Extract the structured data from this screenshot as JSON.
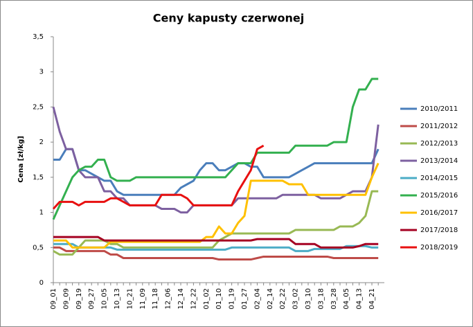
{
  "chart_data": {
    "type": "line",
    "title": "Ceny kapusty czerwonej",
    "y_label": "Cena [zł/kg]",
    "categories": [
      "09_01",
      null,
      "09_09",
      null,
      "09_19",
      null,
      "09_27",
      null,
      "10_05",
      null,
      "10_13",
      null,
      "10_21",
      null,
      "11_09",
      null,
      "11_18",
      null,
      "12_06",
      null,
      "12_14",
      null,
      "12_22",
      null,
      "01_02",
      null,
      "01_10",
      null,
      "01_19",
      null,
      "01_27",
      null,
      "02_04",
      null,
      "02_14",
      null,
      "02_22",
      null,
      "03_02",
      null,
      "03_10",
      null,
      "03_18",
      null,
      "03_28",
      null,
      "04_05",
      null,
      "04_13",
      null,
      "04_21",
      null
    ],
    "ylim": [
      0,
      3.5
    ],
    "yticks": [
      0,
      {
        "value": 0.5,
        "label": "0,5"
      },
      1,
      {
        "value": 1.5,
        "label": "1,5"
      },
      2,
      {
        "value": 2.5,
        "label": "2,5"
      },
      3,
      {
        "value": 3.5,
        "label": "3,5"
      }
    ],
    "grid": false,
    "legend": "right",
    "series": [
      {
        "name": "2010/2011",
        "color": "#4a7ebb",
        "values": [
          1.75,
          1.75,
          1.9,
          1.9,
          1.6,
          1.6,
          1.55,
          1.5,
          1.45,
          1.45,
          1.3,
          1.25,
          1.25,
          1.25,
          1.25,
          1.25,
          1.25,
          1.25,
          1.25,
          1.25,
          1.35,
          1.4,
          1.45,
          1.6,
          1.7,
          1.7,
          1.6,
          1.6,
          1.65,
          1.7,
          1.7,
          1.65,
          1.65,
          1.5,
          1.5,
          1.5,
          1.5,
          1.5,
          1.55,
          1.6,
          1.65,
          1.7,
          1.7,
          1.7,
          1.7,
          1.7,
          1.7,
          1.7,
          1.7,
          1.7,
          1.7,
          1.9
        ]
      },
      {
        "name": "2011/2012",
        "color": "#be4b48",
        "values": [
          0.5,
          0.5,
          0.45,
          0.45,
          0.45,
          0.45,
          0.45,
          0.45,
          0.45,
          0.4,
          0.4,
          0.35,
          0.35,
          0.35,
          0.35,
          0.35,
          0.35,
          0.35,
          0.35,
          0.35,
          0.35,
          0.35,
          0.35,
          0.35,
          0.35,
          0.35,
          0.33,
          0.33,
          0.33,
          0.33,
          0.33,
          0.33,
          0.35,
          0.37,
          0.37,
          0.37,
          0.37,
          0.37,
          0.37,
          0.37,
          0.37,
          0.37,
          0.37,
          0.37,
          0.35,
          0.35,
          0.35,
          0.35,
          0.35,
          0.35,
          0.35,
          0.35
        ]
      },
      {
        "name": "2012/2013",
        "color": "#98b954",
        "values": [
          0.45,
          0.4,
          0.4,
          0.4,
          0.5,
          0.6,
          0.6,
          0.6,
          0.6,
          0.55,
          0.55,
          0.5,
          0.5,
          0.5,
          0.5,
          0.5,
          0.5,
          0.5,
          0.5,
          0.5,
          0.5,
          0.5,
          0.5,
          0.5,
          0.5,
          0.5,
          0.6,
          0.65,
          0.7,
          0.7,
          0.7,
          0.7,
          0.7,
          0.7,
          0.7,
          0.7,
          0.7,
          0.7,
          0.75,
          0.75,
          0.75,
          0.75,
          0.75,
          0.75,
          0.75,
          0.8,
          0.8,
          0.8,
          0.85,
          0.95,
          1.3,
          1.3
        ]
      },
      {
        "name": "2013/2014",
        "color": "#7d60a0",
        "values": [
          2.5,
          2.15,
          1.9,
          1.9,
          1.6,
          1.5,
          1.5,
          1.5,
          1.3,
          1.3,
          1.2,
          1.2,
          1.1,
          1.1,
          1.1,
          1.1,
          1.1,
          1.05,
          1.05,
          1.05,
          1.0,
          1.0,
          1.1,
          1.1,
          1.1,
          1.1,
          1.1,
          1.1,
          1.1,
          1.2,
          1.2,
          1.2,
          1.2,
          1.2,
          1.2,
          1.2,
          1.25,
          1.25,
          1.25,
          1.25,
          1.25,
          1.25,
          1.2,
          1.2,
          1.2,
          1.2,
          1.25,
          1.3,
          1.3,
          1.3,
          1.5,
          2.25
        ]
      },
      {
        "name": "2014/2015",
        "color": "#4bacc6",
        "values": [
          0.55,
          0.55,
          0.55,
          0.55,
          0.5,
          0.5,
          0.5,
          0.5,
          0.5,
          0.5,
          0.47,
          0.47,
          0.47,
          0.47,
          0.47,
          0.47,
          0.47,
          0.47,
          0.47,
          0.47,
          0.47,
          0.47,
          0.47,
          0.47,
          0.47,
          0.47,
          0.47,
          0.47,
          0.5,
          0.5,
          0.5,
          0.5,
          0.5,
          0.5,
          0.5,
          0.5,
          0.5,
          0.5,
          0.45,
          0.45,
          0.45,
          0.48,
          0.48,
          0.48,
          0.48,
          0.48,
          0.52,
          0.52,
          0.52,
          0.52,
          0.5,
          0.5
        ]
      },
      {
        "name": "2015/2016",
        "color": "#33b04f",
        "values": [
          0.9,
          1.1,
          1.3,
          1.5,
          1.6,
          1.65,
          1.65,
          1.75,
          1.75,
          1.5,
          1.45,
          1.45,
          1.45,
          1.5,
          1.5,
          1.5,
          1.5,
          1.5,
          1.5,
          1.5,
          1.5,
          1.5,
          1.5,
          1.5,
          1.5,
          1.5,
          1.5,
          1.5,
          1.6,
          1.7,
          1.7,
          1.7,
          1.85,
          1.85,
          1.85,
          1.85,
          1.85,
          1.85,
          1.95,
          1.95,
          1.95,
          1.95,
          1.95,
          1.95,
          2.0,
          2.0,
          2.0,
          2.5,
          2.75,
          2.75,
          2.9,
          2.9
        ]
      },
      {
        "name": "2016/2017",
        "color": "#ffc000",
        "values": [
          0.6,
          0.6,
          0.6,
          0.5,
          0.5,
          0.5,
          0.5,
          0.5,
          0.5,
          0.58,
          0.58,
          0.58,
          0.58,
          0.58,
          0.58,
          0.58,
          0.58,
          0.58,
          0.58,
          0.58,
          0.58,
          0.58,
          0.58,
          0.58,
          0.65,
          0.65,
          0.8,
          0.7,
          0.7,
          0.85,
          0.95,
          1.45,
          1.45,
          1.45,
          1.45,
          1.45,
          1.45,
          1.4,
          1.4,
          1.4,
          1.25,
          1.25,
          1.25,
          1.25,
          1.25,
          1.25,
          1.25,
          1.25,
          1.25,
          1.25,
          1.5,
          1.7
        ]
      },
      {
        "name": "2017/2018",
        "color": "#a50021",
        "values": [
          0.65,
          0.65,
          0.65,
          0.65,
          0.65,
          0.65,
          0.65,
          0.65,
          0.6,
          0.6,
          0.6,
          0.6,
          0.6,
          0.6,
          0.6,
          0.6,
          0.6,
          0.6,
          0.6,
          0.6,
          0.6,
          0.6,
          0.6,
          0.6,
          0.6,
          0.6,
          0.6,
          0.6,
          0.6,
          0.6,
          0.6,
          0.6,
          0.62,
          0.62,
          0.62,
          0.62,
          0.62,
          0.62,
          0.55,
          0.55,
          0.55,
          0.55,
          0.5,
          0.5,
          0.5,
          0.5,
          0.5,
          0.5,
          0.52,
          0.55,
          0.55,
          0.55
        ]
      },
      {
        "name": "2018/2019",
        "color": "#e81010",
        "values": [
          1.05,
          1.15,
          1.15,
          1.15,
          1.1,
          1.15,
          1.15,
          1.15,
          1.15,
          1.2,
          1.2,
          1.15,
          1.1,
          1.1,
          1.1,
          1.1,
          1.1,
          1.25,
          1.25,
          1.25,
          1.25,
          1.2,
          1.1,
          1.1,
          1.1,
          1.1,
          1.1,
          1.1,
          1.1,
          1.3,
          1.45,
          1.6,
          1.9,
          1.95,
          null,
          null,
          null,
          null,
          null,
          null,
          null,
          null,
          null,
          null,
          null,
          null,
          null,
          null,
          null,
          null,
          null,
          null
        ]
      }
    ]
  }
}
